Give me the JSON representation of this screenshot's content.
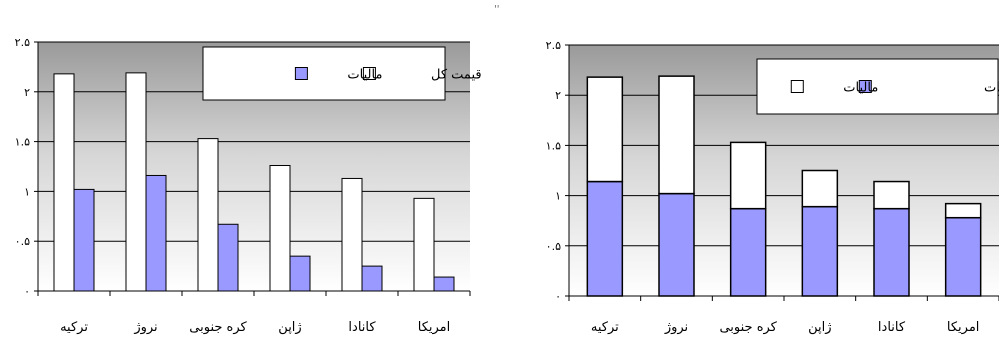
{
  "top_marker": "''",
  "chart_data": [
    {
      "type": "bar",
      "mode": "grouped",
      "categories": [
        "ترکیه",
        "نروژ",
        "کره جنوبی",
        "ژاپن",
        "کانادا",
        "امریکا"
      ],
      "series": [
        {
          "name": "قیمت کل",
          "color": "#ffffff",
          "values": [
            2.18,
            2.19,
            1.53,
            1.26,
            1.13,
            0.93
          ]
        },
        {
          "name": "مالیات",
          "color": "#9999ff",
          "values": [
            1.02,
            1.16,
            0.67,
            0.35,
            0.25,
            0.14
          ]
        }
      ],
      "yticks": [
        "۰",
        "۰.۵",
        "۱",
        "۱.۵",
        "۲",
        "۲.۵"
      ],
      "ylim": [
        0,
        2.5
      ],
      "grid": true,
      "legend_position": "top-right"
    },
    {
      "type": "bar",
      "mode": "stacked",
      "categories": [
        "ترکیه",
        "نروژ",
        "کره جنوبی",
        "ژاپن",
        "کانادا",
        "امریکا"
      ],
      "series": [
        {
          "name": "قیمت قبل از مالیات",
          "color": "#9999ff",
          "values": [
            1.14,
            1.02,
            0.87,
            0.89,
            0.87,
            0.78
          ]
        },
        {
          "name": "مالیات",
          "color": "#ffffff",
          "values": [
            1.04,
            1.17,
            0.66,
            0.36,
            0.27,
            0.14
          ]
        }
      ],
      "yticks": [
        "۰",
        "۰.۵",
        "۱",
        "۱.۵",
        "۲",
        "۲.۵"
      ],
      "ylim": [
        0,
        2.5
      ],
      "grid": true,
      "legend_position": "top-right"
    }
  ]
}
